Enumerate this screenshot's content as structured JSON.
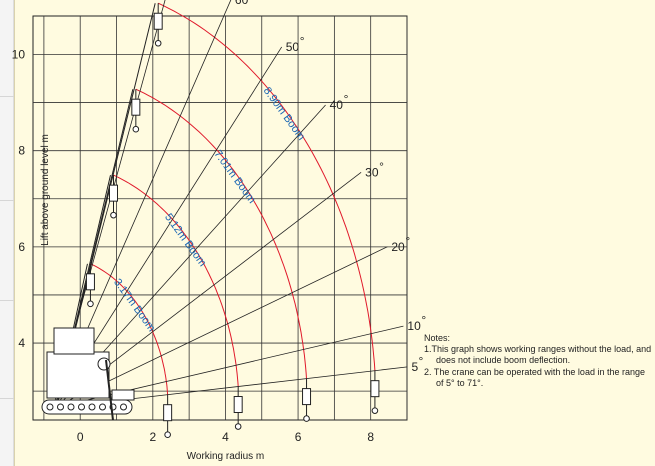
{
  "chart_data": {
    "type": "line",
    "xlabel": "Working radius   m",
    "ylabel": "Lift above ground level   m",
    "xlim": [
      -1.3,
      9
    ],
    "ylim": [
      2.4,
      10.8
    ],
    "xticks": [
      0,
      2,
      4,
      6,
      8
    ],
    "yticks": [
      4,
      6,
      8,
      10
    ],
    "grid": true,
    "angles": [
      "71",
      "70",
      "60",
      "50",
      "40",
      "30",
      "20",
      "10",
      "5"
    ],
    "angle_values": [
      71,
      70,
      60,
      50,
      40,
      30,
      20,
      10,
      5
    ],
    "series": [
      {
        "name": "3.17m Boom",
        "length": 3.17
      },
      {
        "name": "5.12m Boom",
        "length": 5.12
      },
      {
        "name": "7.01m Boom",
        "length": 7.01
      },
      {
        "name": "8.90m Boom",
        "length": 8.9
      }
    ],
    "pivot": {
      "x": -0.75,
      "y": 2.65
    },
    "colors": {
      "arc": "#e0192b",
      "boom_label": "#1a66b3",
      "ray": "#222222"
    }
  },
  "notes": {
    "title": "Notes:",
    "items": [
      "1.This graph shows working ranges without the load, and does not include boom deflection.",
      "2. The crane can be operated with the load in the range of 5° to 71°."
    ]
  }
}
